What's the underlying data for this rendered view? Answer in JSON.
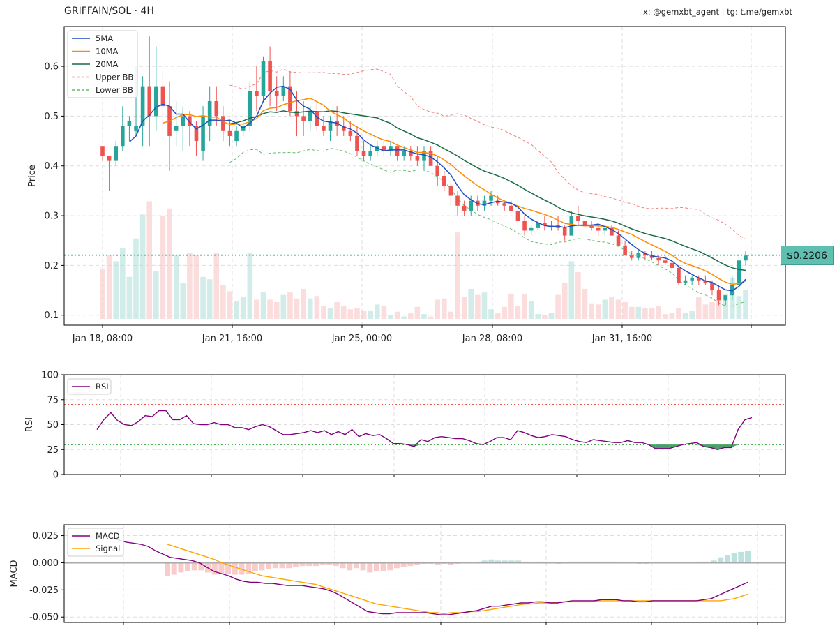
{
  "header": {
    "title": "GRIFFAIN/SOL · 4H",
    "credit": "x: @gemxbt_agent | tg: t.me/gemxbt"
  },
  "colors": {
    "up": "#26a69a",
    "down": "#ef5350",
    "ma5": "#1f4fbf",
    "ma10": "#ff8c00",
    "ma20": "#1a6b45",
    "bb_upper": "#f08080",
    "bb_lower": "#66bb6a",
    "rsi": "#800080",
    "signal": "#ffa500",
    "macd": "#800080",
    "last_line": "#5fbfb0"
  },
  "chart_data": [
    {
      "type": "candlestick",
      "ylabel": "Price",
      "ylim": [
        0.08,
        0.68
      ],
      "yticks": [
        "0.1",
        "0.2",
        "0.3",
        "0.4",
        "0.5",
        "0.6"
      ],
      "xtick_labels": [
        "Jan 18, 08:00",
        "Jan 21, 16:00",
        "Jan 25, 00:00",
        "Jan 28, 08:00",
        "Jan 31, 16:00"
      ],
      "last_price_label": "$0.2206",
      "last_price": 0.2206,
      "legend": [
        "5MA",
        "10MA",
        "20MA",
        "Upper BB",
        "Lower BB"
      ],
      "grid": true,
      "candles": [
        [
          0.44,
          0.44,
          0.41,
          0.42
        ],
        [
          0.42,
          0.42,
          0.35,
          0.41
        ],
        [
          0.41,
          0.45,
          0.4,
          0.44
        ],
        [
          0.44,
          0.52,
          0.43,
          0.48
        ],
        [
          0.48,
          0.5,
          0.45,
          0.49
        ],
        [
          0.47,
          0.6,
          0.46,
          0.48
        ],
        [
          0.48,
          0.58,
          0.44,
          0.56
        ],
        [
          0.56,
          0.66,
          0.44,
          0.5
        ],
        [
          0.5,
          0.64,
          0.47,
          0.56
        ],
        [
          0.56,
          0.59,
          0.47,
          0.52
        ],
        [
          0.52,
          0.57,
          0.39,
          0.46
        ],
        [
          0.47,
          0.53,
          0.44,
          0.48
        ],
        [
          0.48,
          0.52,
          0.43,
          0.5
        ],
        [
          0.5,
          0.51,
          0.44,
          0.48
        ],
        [
          0.48,
          0.49,
          0.42,
          0.45
        ],
        [
          0.43,
          0.52,
          0.41,
          0.5
        ],
        [
          0.48,
          0.56,
          0.45,
          0.53
        ],
        [
          0.53,
          0.56,
          0.48,
          0.5
        ],
        [
          0.5,
          0.52,
          0.45,
          0.47
        ],
        [
          0.47,
          0.49,
          0.44,
          0.46
        ],
        [
          0.45,
          0.48,
          0.44,
          0.47
        ],
        [
          0.47,
          0.49,
          0.46,
          0.48
        ],
        [
          0.48,
          0.57,
          0.47,
          0.55
        ],
        [
          0.55,
          0.6,
          0.51,
          0.54
        ],
        [
          0.54,
          0.62,
          0.53,
          0.61
        ],
        [
          0.61,
          0.64,
          0.52,
          0.55
        ],
        [
          0.55,
          0.58,
          0.51,
          0.54
        ],
        [
          0.54,
          0.58,
          0.53,
          0.56
        ],
        [
          0.56,
          0.59,
          0.5,
          0.51
        ],
        [
          0.51,
          0.55,
          0.46,
          0.5
        ],
        [
          0.5,
          0.53,
          0.46,
          0.49
        ],
        [
          0.49,
          0.52,
          0.47,
          0.51
        ],
        [
          0.51,
          0.53,
          0.47,
          0.48
        ],
        [
          0.48,
          0.5,
          0.46,
          0.47
        ],
        [
          0.47,
          0.5,
          0.45,
          0.49
        ],
        [
          0.49,
          0.52,
          0.46,
          0.48
        ],
        [
          0.48,
          0.5,
          0.46,
          0.47
        ],
        [
          0.47,
          0.49,
          0.45,
          0.46
        ],
        [
          0.46,
          0.48,
          0.42,
          0.43
        ],
        [
          0.43,
          0.45,
          0.41,
          0.42
        ],
        [
          0.42,
          0.44,
          0.41,
          0.43
        ],
        [
          0.43,
          0.45,
          0.42,
          0.44
        ],
        [
          0.44,
          0.45,
          0.42,
          0.43
        ],
        [
          0.43,
          0.45,
          0.42,
          0.44
        ],
        [
          0.44,
          0.44,
          0.41,
          0.42
        ],
        [
          0.42,
          0.44,
          0.41,
          0.43
        ],
        [
          0.43,
          0.44,
          0.41,
          0.42
        ],
        [
          0.42,
          0.44,
          0.4,
          0.41
        ],
        [
          0.41,
          0.44,
          0.39,
          0.43
        ],
        [
          0.43,
          0.44,
          0.4,
          0.4
        ],
        [
          0.4,
          0.42,
          0.36,
          0.38
        ],
        [
          0.38,
          0.39,
          0.35,
          0.36
        ],
        [
          0.36,
          0.37,
          0.32,
          0.34
        ],
        [
          0.34,
          0.35,
          0.3,
          0.32
        ],
        [
          0.32,
          0.33,
          0.3,
          0.31
        ],
        [
          0.31,
          0.34,
          0.3,
          0.33
        ],
        [
          0.33,
          0.34,
          0.31,
          0.32
        ],
        [
          0.32,
          0.34,
          0.31,
          0.33
        ],
        [
          0.33,
          0.35,
          0.32,
          0.34
        ],
        [
          0.33,
          0.34,
          0.32,
          0.325
        ],
        [
          0.325,
          0.33,
          0.31,
          0.32
        ],
        [
          0.32,
          0.33,
          0.31,
          0.31
        ],
        [
          0.31,
          0.33,
          0.28,
          0.29
        ],
        [
          0.29,
          0.3,
          0.26,
          0.27
        ],
        [
          0.27,
          0.28,
          0.26,
          0.275
        ],
        [
          0.275,
          0.29,
          0.27,
          0.285
        ],
        [
          0.285,
          0.3,
          0.27,
          0.28
        ],
        [
          0.28,
          0.29,
          0.27,
          0.28
        ],
        [
          0.28,
          0.3,
          0.27,
          0.275
        ],
        [
          0.275,
          0.28,
          0.25,
          0.26
        ],
        [
          0.26,
          0.31,
          0.26,
          0.3
        ],
        [
          0.3,
          0.32,
          0.28,
          0.29
        ],
        [
          0.29,
          0.31,
          0.27,
          0.28
        ],
        [
          0.28,
          0.29,
          0.27,
          0.275
        ],
        [
          0.275,
          0.28,
          0.26,
          0.27
        ],
        [
          0.27,
          0.28,
          0.26,
          0.275
        ],
        [
          0.275,
          0.28,
          0.26,
          0.26
        ],
        [
          0.26,
          0.27,
          0.24,
          0.24
        ],
        [
          0.24,
          0.25,
          0.22,
          0.22
        ],
        [
          0.22,
          0.23,
          0.21,
          0.215
        ],
        [
          0.215,
          0.23,
          0.21,
          0.225
        ],
        [
          0.225,
          0.23,
          0.21,
          0.22
        ],
        [
          0.22,
          0.23,
          0.21,
          0.215
        ],
        [
          0.215,
          0.22,
          0.2,
          0.21
        ],
        [
          0.21,
          0.22,
          0.2,
          0.205
        ],
        [
          0.205,
          0.21,
          0.19,
          0.195
        ],
        [
          0.195,
          0.2,
          0.16,
          0.165
        ],
        [
          0.165,
          0.18,
          0.16,
          0.17
        ],
        [
          0.17,
          0.18,
          0.16,
          0.175
        ],
        [
          0.175,
          0.18,
          0.16,
          0.17
        ],
        [
          0.17,
          0.18,
          0.16,
          0.165
        ],
        [
          0.165,
          0.17,
          0.14,
          0.15
        ],
        [
          0.15,
          0.16,
          0.12,
          0.13
        ],
        [
          0.13,
          0.14,
          0.12,
          0.14
        ],
        [
          0.14,
          0.18,
          0.13,
          0.16
        ],
        [
          0.16,
          0.22,
          0.15,
          0.21
        ],
        [
          0.21,
          0.23,
          0.2,
          0.2206
        ]
      ],
      "volume": [
        0.42,
        0.53,
        0.48,
        0.59,
        0.35,
        0.67,
        0.87,
        0.98,
        0.4,
        0.86,
        0.92,
        0.53,
        0.3,
        0.55,
        0.53,
        0.35,
        0.33,
        0.55,
        0.28,
        0.23,
        0.15,
        0.18,
        0.55,
        0.16,
        0.22,
        0.16,
        0.14,
        0.2,
        0.22,
        0.17,
        0.25,
        0.17,
        0.19,
        0.11,
        0.09,
        0.14,
        0.11,
        0.08,
        0.09,
        0.07,
        0.07,
        0.12,
        0.11,
        0.03,
        0.06,
        0.02,
        0.05,
        0.1,
        0.04,
        0.02,
        0.16,
        0.17,
        0.06,
        0.72,
        0.18,
        0.25,
        0.2,
        0.22,
        0.08,
        0.05,
        0.1,
        0.21,
        0.11,
        0.21,
        0.15,
        0.04,
        0.03,
        0.05,
        0.2,
        0.3,
        0.48,
        0.39,
        0.25,
        0.13,
        0.12,
        0.16,
        0.18,
        0.16,
        0.14,
        0.1,
        0.1,
        0.09,
        0.09,
        0.11,
        0.04,
        0.05,
        0.09,
        0.05,
        0.07,
        0.18,
        0.12,
        0.14,
        0.16,
        0.21,
        0.34,
        0.19,
        0.24
      ]
    },
    {
      "type": "line",
      "ylabel": "RSI",
      "ylim": [
        0,
        100
      ],
      "yticks": [
        "0",
        "25",
        "50",
        "75",
        "100"
      ],
      "legend": [
        "RSI"
      ],
      "overbought": 70,
      "oversold": 30,
      "values": [
        45,
        55,
        62,
        54,
        50,
        49,
        53,
        59,
        58,
        64,
        64,
        55,
        55,
        59,
        51,
        50,
        50,
        52,
        50,
        50,
        47,
        47,
        45,
        48,
        50,
        48,
        44,
        40,
        40,
        41,
        42,
        44,
        42,
        44,
        40,
        43,
        40,
        45,
        38,
        41,
        39,
        40,
        36,
        31,
        31,
        30,
        28,
        35,
        33,
        37,
        38,
        37,
        36,
        36,
        34,
        31,
        30,
        33,
        37,
        37,
        35,
        44,
        42,
        39,
        37,
        38,
        40,
        39,
        38,
        35,
        33,
        32,
        35,
        34,
        33,
        32,
        32,
        34,
        32,
        32,
        30,
        26,
        26,
        26,
        28,
        30,
        31,
        32,
        28,
        27,
        25,
        27,
        27,
        45,
        55,
        57
      ]
    },
    {
      "type": "line+bar",
      "ylabel": "MACD",
      "ylim": [
        -0.055,
        0.035
      ],
      "yticks": [
        "0.025",
        "0.000",
        "-0.025",
        "-0.050"
      ],
      "legend": [
        "MACD",
        "Signal"
      ],
      "macd": [
        0.027,
        0.025,
        0.023,
        0.021,
        0.019,
        0.018,
        0.017,
        0.015,
        0.011,
        0.008,
        0.005,
        0.004,
        0.003,
        0.002,
        0.0,
        -0.004,
        -0.008,
        -0.01,
        -0.012,
        -0.015,
        -0.017,
        -0.018,
        -0.018,
        -0.019,
        -0.019,
        -0.02,
        -0.021,
        -0.021,
        -0.021,
        -0.022,
        -0.023,
        -0.024,
        -0.026,
        -0.029,
        -0.033,
        -0.037,
        -0.041,
        -0.045,
        -0.046,
        -0.047,
        -0.047,
        -0.046,
        -0.046,
        -0.046,
        -0.046,
        -0.046,
        -0.047,
        -0.048,
        -0.048,
        -0.047,
        -0.046,
        -0.045,
        -0.044,
        -0.042,
        -0.04,
        -0.04,
        -0.039,
        -0.038,
        -0.037,
        -0.037,
        -0.036,
        -0.036,
        -0.037,
        -0.037,
        -0.036,
        -0.035,
        -0.035,
        -0.035,
        -0.035,
        -0.034,
        -0.034,
        -0.034,
        -0.035,
        -0.035,
        -0.036,
        -0.036,
        -0.035,
        -0.035,
        -0.035,
        -0.035,
        -0.035,
        -0.035,
        -0.035,
        -0.034,
        -0.033,
        -0.03,
        -0.027,
        -0.024,
        -0.021,
        -0.018
      ],
      "signal": [
        0.017,
        0.015,
        0.013,
        0.011,
        0.009,
        0.007,
        0.005,
        0.003,
        0.0,
        -0.002,
        -0.004,
        -0.006,
        -0.008,
        -0.01,
        -0.012,
        -0.013,
        -0.014,
        -0.015,
        -0.016,
        -0.017,
        -0.018,
        -0.019,
        -0.02,
        -0.022,
        -0.024,
        -0.026,
        -0.028,
        -0.03,
        -0.032,
        -0.034,
        -0.036,
        -0.038,
        -0.039,
        -0.04,
        -0.041,
        -0.042,
        -0.043,
        -0.044,
        -0.045,
        -0.046,
        -0.046,
        -0.047,
        -0.046,
        -0.046,
        -0.046,
        -0.045,
        -0.045,
        -0.044,
        -0.043,
        -0.042,
        -0.041,
        -0.04,
        -0.039,
        -0.038,
        -0.038,
        -0.037,
        -0.037,
        -0.037,
        -0.036,
        -0.036,
        -0.036,
        -0.036,
        -0.036,
        -0.036,
        -0.035,
        -0.035,
        -0.035,
        -0.035,
        -0.035,
        -0.035,
        -0.035,
        -0.035,
        -0.035,
        -0.035,
        -0.035,
        -0.035,
        -0.035,
        -0.035,
        -0.035,
        -0.035,
        -0.035,
        -0.035,
        -0.035,
        -0.034,
        -0.033,
        -0.031,
        -0.029
      ]
    }
  ]
}
